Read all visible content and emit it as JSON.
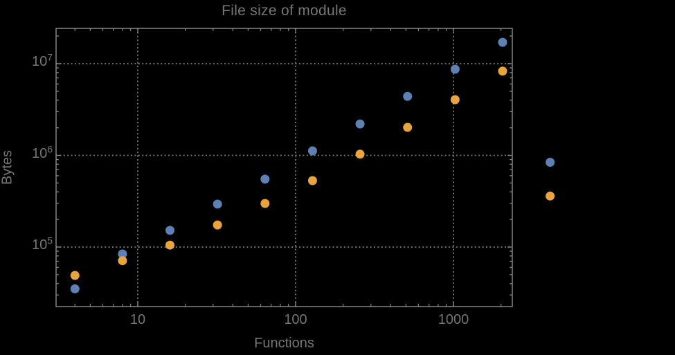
{
  "title": "File size of module",
  "colors": {
    "background": "#000000",
    "frame": "#868686",
    "grid": "#7c7c7c",
    "text": "#757575",
    "series_blue": "#5e81b5",
    "series_orange": "#e9a43e"
  },
  "chart_data": {
    "type": "scatter",
    "title": "File size of module",
    "xlabel": "Functions",
    "ylabel": "Bytes",
    "xscale": "log",
    "yscale": "log",
    "xlim": [
      3.05,
      2365
    ],
    "ylim": [
      22500,
      24500000
    ],
    "grid": "dotted gray lines at decade ticks, framed plot with mirrored ticks",
    "legend_position": "none",
    "x": [
      4,
      8,
      16,
      32,
      64,
      128,
      256,
      512,
      1024,
      2048,
      4096
    ],
    "series": [
      {
        "name": "blue",
        "color": "#5e81b5",
        "values": [
          35000,
          84000,
          152000,
          294000,
          550000,
          1120000,
          2200000,
          4400000,
          8700000,
          17100000,
          840000
        ]
      },
      {
        "name": "orange",
        "color": "#e9a43e",
        "values": [
          49000,
          71000,
          105000,
          174000,
          299000,
          530000,
          1030000,
          2020000,
          4050000,
          8300000,
          360000
        ]
      }
    ],
    "x_ticks": [
      10,
      100,
      1000
    ],
    "x_tick_labels": [
      "10",
      "100",
      "1000"
    ],
    "y_ticks": [
      100000,
      1000000,
      10000000
    ],
    "y_tick_labels": [
      "10^5",
      "10^6",
      "10^7"
    ],
    "note": "points at x=4096 fall outside the plot frame on the right"
  }
}
